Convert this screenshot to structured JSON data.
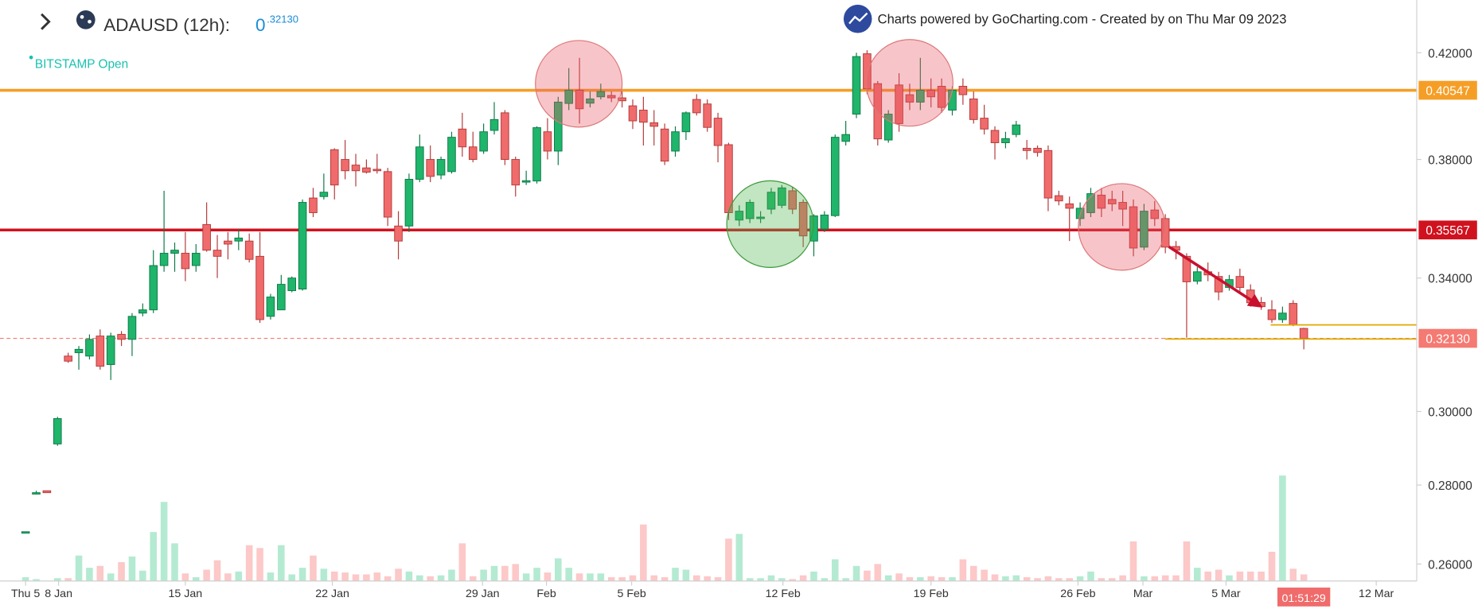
{
  "chart_data": {
    "type": "candlestick",
    "symbol_label": "ADAUSD (12h):",
    "price_int": "0",
    "price_frac": ".32130",
    "exchange": "BITSTAMP Open",
    "credit": "Charts powered by GoCharting.com - Created by  on Thu Mar 09 2023",
    "countdown": "01:51:29",
    "log_y": true,
    "ylim": [
      0.2559,
      0.4413
    ],
    "yticks": [
      {
        "value": 0.42,
        "label": "0.42000"
      },
      {
        "value": 0.38,
        "label": "0.38000"
      },
      {
        "value": 0.34,
        "label": "0.34000"
      },
      {
        "value": 0.3,
        "label": "0.30000"
      },
      {
        "value": 0.28,
        "label": "0.28000"
      },
      {
        "value": 0.26,
        "label": "0.26000"
      }
    ],
    "xlim": [
      -2.4,
      130.6
    ],
    "xticks": [
      {
        "value": 0,
        "label": "Thu 5"
      },
      {
        "value": 3.1,
        "label": "8 Jan"
      },
      {
        "value": 15.0,
        "label": "15 Jan"
      },
      {
        "value": 28.8,
        "label": "22 Jan"
      },
      {
        "value": 42.9,
        "label": "29 Jan"
      },
      {
        "value": 48.9,
        "label": "Feb"
      },
      {
        "value": 56.9,
        "label": "5 Feb"
      },
      {
        "value": 71.1,
        "label": "12 Feb"
      },
      {
        "value": 85.0,
        "label": "19 Feb"
      },
      {
        "value": 98.8,
        "label": "26 Feb"
      },
      {
        "value": 104.9,
        "label": "Mar"
      },
      {
        "value": 112.7,
        "label": "5 Mar"
      },
      {
        "value": 126.8,
        "label": "12 Mar"
      }
    ],
    "up_color": "#1fb56b",
    "down_color": "#f06b6b",
    "up_volume_color": "#b4ead2",
    "down_volume_color": "#fcc8c8",
    "vlim": [
      0,
      120
    ],
    "price_lines": [
      {
        "value": 0.40547,
        "color": "#f59e26"
      },
      {
        "value": 0.35567,
        "color": "#d0121f"
      },
      {
        "value": 0.3213,
        "label": "0.32130",
        "color": "#f47a72",
        "dashed": true
      }
    ],
    "open": [
      0.268,
      0.278,
      0.2785,
      0.291,
      0.316,
      0.317,
      0.316,
      0.322,
      0.3135,
      0.3225,
      0.321,
      0.329,
      0.33,
      0.344,
      0.348,
      0.348,
      0.344,
      0.3575,
      0.349,
      0.352,
      0.352,
      0.352,
      0.347,
      0.328,
      0.33,
      0.336,
      0.3365,
      0.3665,
      0.367,
      0.3835,
      0.38,
      0.378,
      0.377,
      0.3765,
      0.3757,
      0.357,
      0.357,
      0.373,
      0.38,
      0.3745,
      0.3757,
      0.391,
      0.3845,
      0.383,
      0.3905,
      0.397,
      0.38,
      0.372,
      0.3724,
      0.39,
      0.383,
      0.4005,
      0.4055,
      0.4006,
      0.403,
      0.4035,
      0.4026,
      0.3996,
      0.398,
      0.3933,
      0.391,
      0.383,
      0.39,
      0.402,
      0.4003,
      0.395,
      0.3853,
      0.359,
      0.3595,
      0.3595,
      0.3627,
      0.364,
      0.369,
      0.365,
      0.352,
      0.356,
      0.3605,
      0.3865,
      0.3965,
      0.4196,
      0.408,
      0.387,
      0.4075,
      0.4038,
      0.401,
      0.4055,
      0.407,
      0.398,
      0.407,
      0.4022,
      0.395,
      0.3905,
      0.386,
      0.389,
      0.384,
      0.384,
      0.3832,
      0.3673,
      0.3645,
      0.3595,
      0.3615,
      0.3675,
      0.366,
      0.365,
      0.3635,
      0.35,
      0.3624,
      0.3595,
      0.3502,
      0.347,
      0.339,
      0.342,
      0.3405,
      0.337,
      0.3405,
      0.3362,
      0.3323,
      0.33,
      0.327,
      0.332,
      0.3243
    ],
    "high": [
      0.268,
      0.2785,
      0.2785,
      0.2985,
      0.317,
      0.319,
      0.3225,
      0.324,
      0.323,
      0.3235,
      0.329,
      0.332,
      0.349,
      0.369,
      0.3515,
      0.355,
      0.351,
      0.365,
      0.354,
      0.355,
      0.356,
      0.3545,
      0.355,
      0.335,
      0.341,
      0.3405,
      0.366,
      0.37,
      0.375,
      0.384,
      0.387,
      0.382,
      0.38,
      0.382,
      0.377,
      0.362,
      0.375,
      0.389,
      0.385,
      0.381,
      0.39,
      0.397,
      0.39,
      0.393,
      0.401,
      0.398,
      0.381,
      0.376,
      0.392,
      0.395,
      0.403,
      0.414,
      0.418,
      0.405,
      0.408,
      0.405,
      0.405,
      0.402,
      0.403,
      0.398,
      0.393,
      0.392,
      0.3975,
      0.404,
      0.402,
      0.397,
      0.386,
      0.364,
      0.366,
      0.362,
      0.37,
      0.371,
      0.3705,
      0.366,
      0.361,
      0.362,
      0.389,
      0.394,
      0.42,
      0.421,
      0.409,
      0.398,
      0.412,
      0.408,
      0.418,
      0.41,
      0.41,
      0.407,
      0.41,
      0.405,
      0.4,
      0.392,
      0.39,
      0.394,
      0.387,
      0.385,
      0.385,
      0.369,
      0.367,
      0.365,
      0.37,
      0.37,
      0.369,
      0.369,
      0.366,
      0.3645,
      0.3655,
      0.361,
      0.352,
      0.348,
      0.3435,
      0.345,
      0.342,
      0.341,
      0.343,
      0.338,
      0.334,
      0.333,
      0.331,
      0.333,
      0.3245
    ],
    "low": [
      0.268,
      0.2775,
      0.278,
      0.2905,
      0.314,
      0.312,
      0.315,
      0.312,
      0.309,
      0.319,
      0.316,
      0.328,
      0.329,
      0.342,
      0.342,
      0.339,
      0.342,
      0.3485,
      0.34,
      0.346,
      0.349,
      0.345,
      0.326,
      0.327,
      0.33,
      0.3355,
      0.336,
      0.36,
      0.366,
      0.366,
      0.373,
      0.3705,
      0.375,
      0.375,
      0.357,
      0.346,
      0.355,
      0.372,
      0.372,
      0.373,
      0.375,
      0.381,
      0.379,
      0.382,
      0.389,
      0.378,
      0.367,
      0.371,
      0.3715,
      0.38,
      0.378,
      0.398,
      0.393,
      0.399,
      0.402,
      0.401,
      0.399,
      0.391,
      0.385,
      0.385,
      0.378,
      0.381,
      0.387,
      0.396,
      0.39,
      0.379,
      0.359,
      0.357,
      0.358,
      0.358,
      0.361,
      0.363,
      0.361,
      0.35,
      0.347,
      0.355,
      0.36,
      0.385,
      0.395,
      0.404,
      0.385,
      0.386,
      0.39,
      0.398,
      0.398,
      0.399,
      0.397,
      0.396,
      0.4,
      0.393,
      0.389,
      0.38,
      0.384,
      0.388,
      0.38,
      0.381,
      0.362,
      0.364,
      0.352,
      0.357,
      0.36,
      0.36,
      0.362,
      0.357,
      0.347,
      0.349,
      0.357,
      0.348,
      0.346,
      0.3215,
      0.338,
      0.339,
      0.333,
      0.336,
      0.335,
      0.331,
      0.33,
      0.326,
      0.326,
      0.325,
      0.318
    ],
    "close": [
      0.268,
      0.278,
      0.278,
      0.298,
      0.3145,
      0.318,
      0.321,
      0.313,
      0.322,
      0.321,
      0.328,
      0.33,
      0.344,
      0.348,
      0.349,
      0.343,
      0.348,
      0.349,
      0.347,
      0.351,
      0.353,
      0.346,
      0.327,
      0.334,
      0.338,
      0.34,
      0.365,
      0.3615,
      0.3685,
      0.371,
      0.376,
      0.376,
      0.3755,
      0.376,
      0.36,
      0.352,
      0.373,
      0.3845,
      0.374,
      0.38,
      0.388,
      0.3845,
      0.38,
      0.39,
      0.3945,
      0.38,
      0.371,
      0.3725,
      0.3915,
      0.383,
      0.401,
      0.4055,
      0.3985,
      0.4022,
      0.405,
      0.4026,
      0.4015,
      0.394,
      0.3935,
      0.392,
      0.3794,
      0.39,
      0.397,
      0.397,
      0.3916,
      0.385,
      0.3615,
      0.362,
      0.365,
      0.36,
      0.3685,
      0.37,
      0.3627,
      0.3537,
      0.3604,
      0.3607,
      0.388,
      0.389,
      0.4185,
      0.406,
      0.3874,
      0.3965,
      0.393,
      0.401,
      0.4055,
      0.403,
      0.399,
      0.4055,
      0.4038,
      0.3945,
      0.391,
      0.386,
      0.3875,
      0.3925,
      0.3832,
      0.3825,
      0.3665,
      0.3655,
      0.363,
      0.363,
      0.368,
      0.363,
      0.3645,
      0.3627,
      0.3497,
      0.362,
      0.3595,
      0.35,
      0.349,
      0.3388,
      0.342,
      0.341,
      0.3356,
      0.3395,
      0.337,
      0.3322,
      0.331,
      0.327,
      0.329,
      0.3255,
      0.3213
    ],
    "volume": [
      4,
      2,
      0,
      3,
      3,
      27,
      14,
      16,
      8,
      20,
      26,
      11,
      52,
      84,
      40,
      8,
      4,
      12,
      22,
      8,
      10,
      38,
      35,
      9,
      38,
      7,
      14,
      27,
      13,
      10,
      9,
      7,
      7,
      9,
      5,
      13,
      10,
      6,
      5,
      6,
      12,
      40,
      5,
      12,
      16,
      16,
      18,
      8,
      14,
      9,
      24,
      14,
      8,
      8,
      8,
      4,
      4,
      6,
      60,
      6,
      4,
      14,
      12,
      6,
      5,
      4,
      45,
      50,
      3,
      3,
      6,
      3,
      2,
      6,
      10,
      3,
      23,
      3,
      16,
      11,
      18,
      6,
      8,
      4,
      4,
      5,
      4,
      4,
      23,
      16,
      12,
      7,
      5,
      6,
      4,
      3,
      5,
      3,
      3,
      5,
      10,
      3,
      3,
      6,
      42,
      5,
      5,
      6,
      6,
      42,
      14,
      10,
      12,
      6,
      10,
      10,
      10,
      31,
      112,
      13,
      7
    ]
  }
}
